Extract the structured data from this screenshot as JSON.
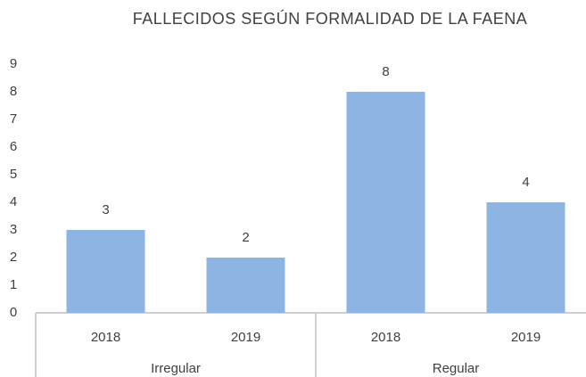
{
  "chart_data": {
    "type": "bar",
    "title": "FALLECIDOS SEGÚN FORMALIDAD DE LA FAENA",
    "categories": [
      "2018",
      "2019",
      "2018",
      "2019"
    ],
    "groups": [
      "Irregular",
      "Regular"
    ],
    "values": [
      3,
      2,
      8,
      4
    ],
    "color": "#8db4e2",
    "ylim": [
      0,
      9
    ],
    "yticks": [
      0,
      1,
      2,
      3,
      4,
      5,
      6,
      7,
      8,
      9
    ],
    "grid": false
  }
}
